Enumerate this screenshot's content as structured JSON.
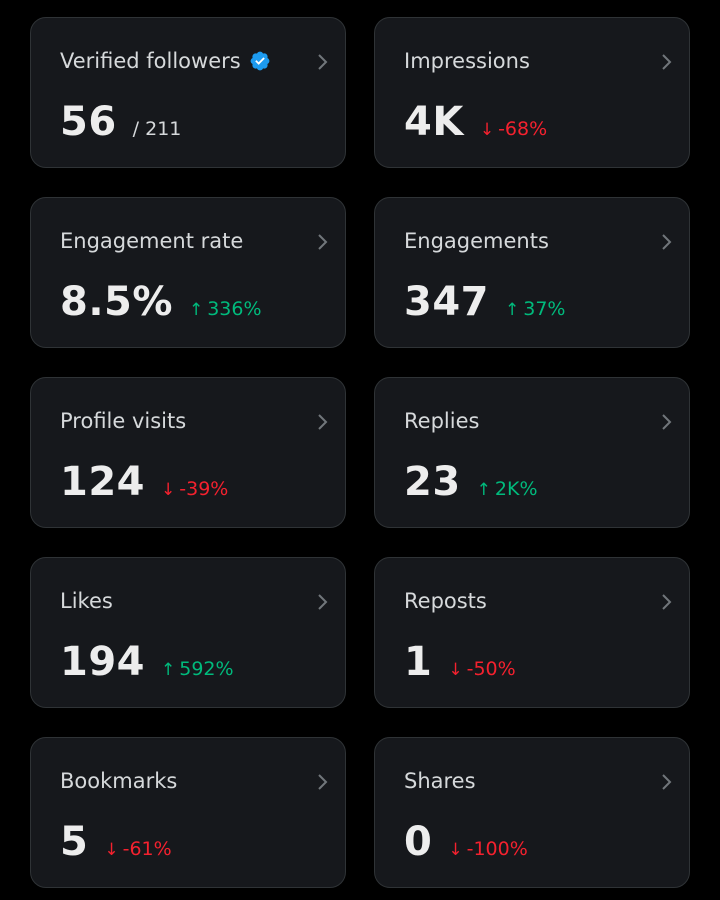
{
  "colors": {
    "background": "#000000",
    "card": "#16181c",
    "card_border": "#2f3336",
    "text_primary": "#ededed",
    "text_secondary": "#d6d9db",
    "positive": "#00ba7c",
    "negative": "#f4212e",
    "verified": "#1d9bf0",
    "chevron": "#71767b"
  },
  "cards": [
    {
      "id": "verified-followers",
      "title": "Verified followers",
      "value": "56",
      "suffix": "/ 211",
      "icon": "verified-badge-icon"
    },
    {
      "id": "impressions",
      "title": "Impressions",
      "value": "4K",
      "change": "-68%",
      "arrow": "↓",
      "direction": "down"
    },
    {
      "id": "engagement-rate",
      "title": "Engagement rate",
      "value": "8.5%",
      "change": "336%",
      "arrow": "↑",
      "direction": "up"
    },
    {
      "id": "engagements",
      "title": "Engagements",
      "value": "347",
      "change": "37%",
      "arrow": "↑",
      "direction": "up"
    },
    {
      "id": "profile-visits",
      "title": "Profile visits",
      "value": "124",
      "change": "-39%",
      "arrow": "↓",
      "direction": "down"
    },
    {
      "id": "replies",
      "title": "Replies",
      "value": "23",
      "change": "2K%",
      "arrow": "↑",
      "direction": "up"
    },
    {
      "id": "likes",
      "title": "Likes",
      "value": "194",
      "change": "592%",
      "arrow": "↑",
      "direction": "up"
    },
    {
      "id": "reposts",
      "title": "Reposts",
      "value": "1",
      "change": "-50%",
      "arrow": "↓",
      "direction": "down"
    },
    {
      "id": "bookmarks",
      "title": "Bookmarks",
      "value": "5",
      "change": "-61%",
      "arrow": "↓",
      "direction": "down"
    },
    {
      "id": "shares",
      "title": "Shares",
      "value": "0",
      "change": "-100%",
      "arrow": "↓",
      "direction": "down"
    }
  ]
}
